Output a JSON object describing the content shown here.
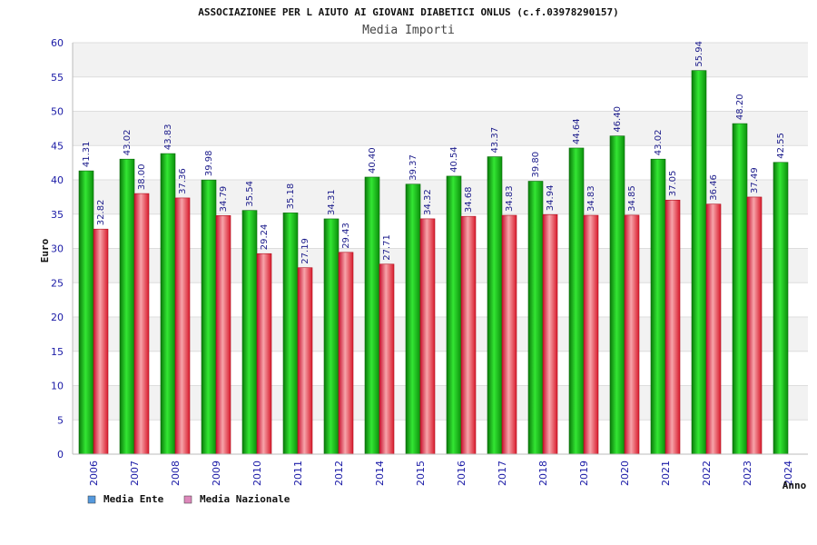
{
  "chart_data": {
    "type": "bar",
    "title": "ASSOCIAZIONEE PER L AIUTO AI GIOVANI DIABETICI ONLUS (c.f.03978290157)",
    "subtitle": "Media Importi",
    "xlabel": "Anno",
    "ylabel": "Euro",
    "ylim": [
      0,
      60
    ],
    "yticks": [
      "0",
      "5",
      "10",
      "15",
      "20",
      "25",
      "30",
      "35",
      "40",
      "45",
      "50",
      "55",
      "60"
    ],
    "grid": true,
    "legend_position": "bottom-left",
    "categories": [
      "2006",
      "2007",
      "2008",
      "2009",
      "2010",
      "2011",
      "2012",
      "2014",
      "2015",
      "2016",
      "2017",
      "2018",
      "2019",
      "2020",
      "2021",
      "2022",
      "2023",
      "2024"
    ],
    "series": [
      {
        "name": "Media Ente",
        "color": "#1fc21f",
        "legend_color": "#5599dd",
        "values": [
          41.31,
          43.02,
          43.83,
          39.98,
          35.54,
          35.18,
          34.31,
          40.4,
          39.37,
          40.54,
          43.37,
          39.8,
          44.64,
          46.4,
          43.02,
          55.94,
          48.2,
          42.55
        ],
        "labels": [
          "41.31",
          "43.02",
          "43.83",
          "39.98",
          "35.54",
          "35.18",
          "34.31",
          "40.40",
          "39.37",
          "40.54",
          "43.37",
          "39.80",
          "44.64",
          "46.40",
          "43.02",
          "55.94",
          "48.20",
          "42.55"
        ]
      },
      {
        "name": "Media Nazionale",
        "color": "#e8404a",
        "legend_color": "#dd88bb",
        "values": [
          32.82,
          38.0,
          37.36,
          34.79,
          29.24,
          27.19,
          29.43,
          27.71,
          34.32,
          34.68,
          34.83,
          34.94,
          34.83,
          34.85,
          37.05,
          36.46,
          37.49,
          null
        ],
        "labels": [
          "32.82",
          "38.00",
          "37.36",
          "34.79",
          "29.24",
          "27.19",
          "29.43",
          "27.71",
          "34.32",
          "34.68",
          "34.83",
          "34.94",
          "34.83",
          "34.85",
          "37.05",
          "36.46",
          "37.49",
          ""
        ]
      }
    ]
  }
}
